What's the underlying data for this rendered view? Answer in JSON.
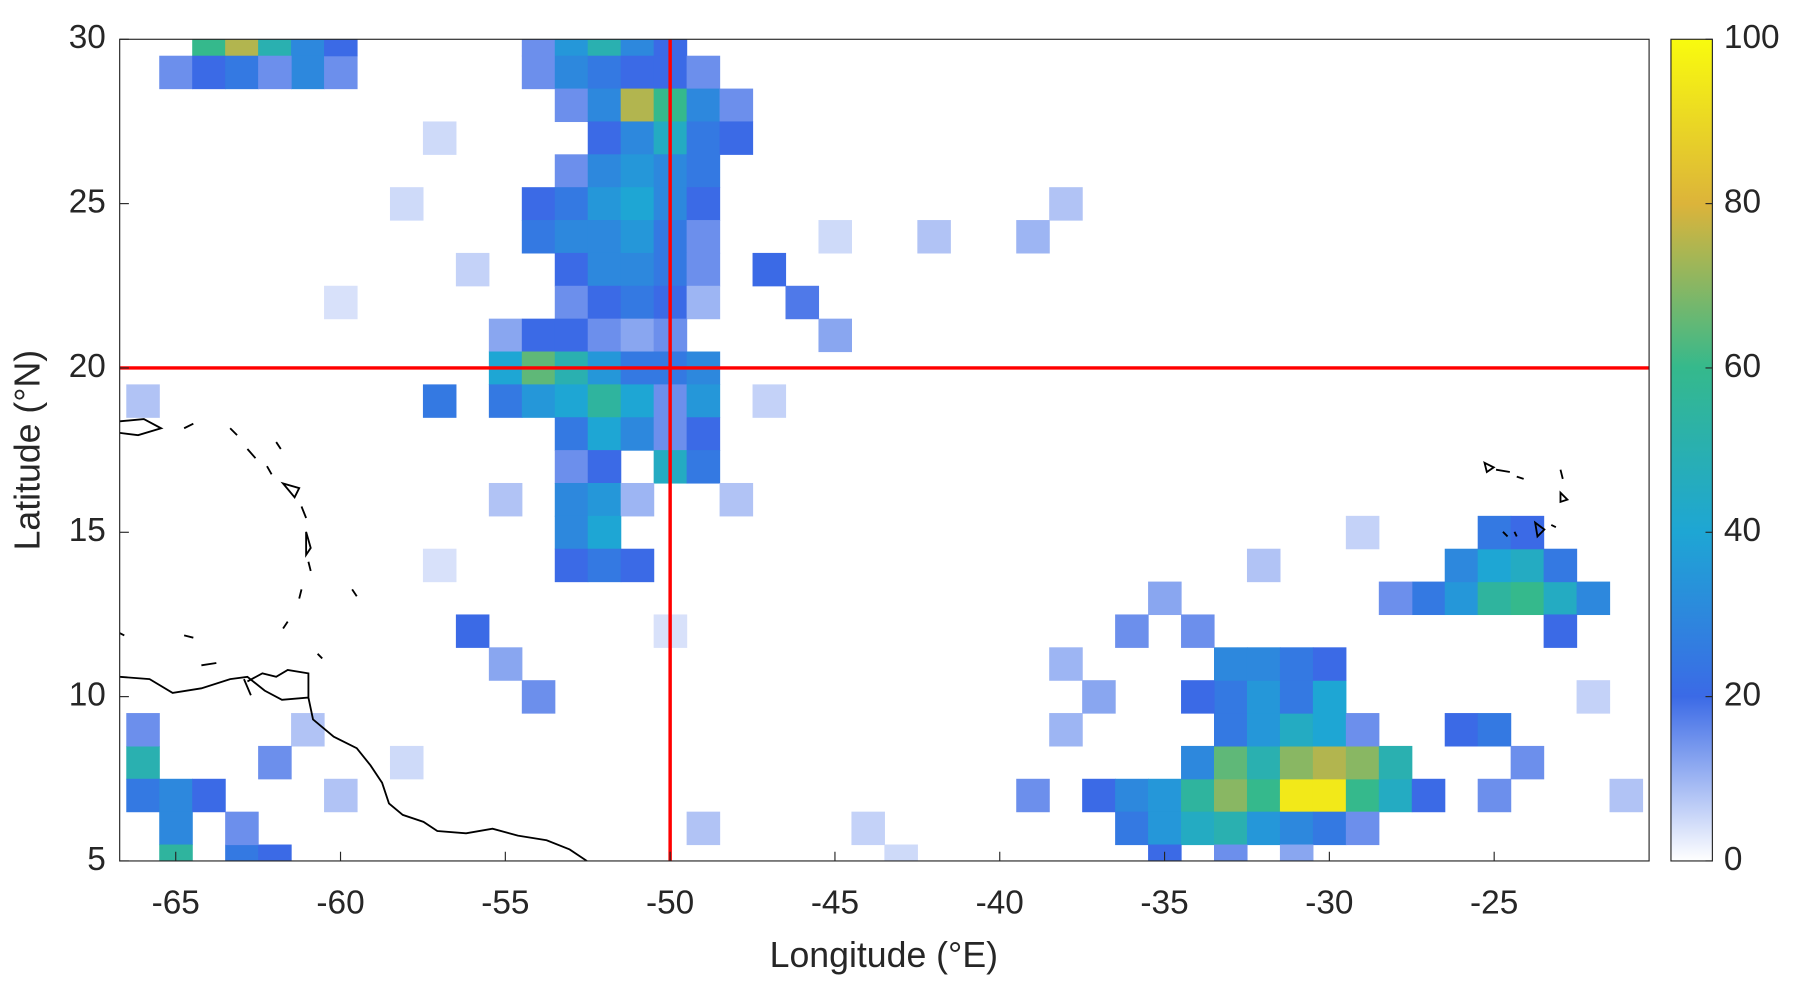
{
  "chart_data": {
    "type": "heatmap",
    "xlabel": "Longitude (°E)",
    "ylabel": "Latitude (°N)",
    "xlim": [
      -66.7,
      -20.3
    ],
    "ylim": [
      5,
      30
    ],
    "xticks": [
      -65,
      -60,
      -55,
      -50,
      -45,
      -40,
      -35,
      -30,
      -25
    ],
    "yticks": [
      5,
      10,
      15,
      20,
      25,
      30
    ],
    "clim": [
      0,
      100
    ],
    "cticks": [
      0,
      20,
      40,
      60,
      80,
      100
    ],
    "colormap": [
      "#ffffff",
      "#3b6ae6",
      "#1ea6d4",
      "#35b98c",
      "#dcb43a",
      "#f9fb0e"
    ],
    "crosshair": {
      "x": -50,
      "y": 20,
      "color": "#ff0000"
    },
    "x": [
      -65,
      -64,
      -63,
      -62,
      -61,
      -64,
      -63,
      -61,
      -60,
      -62,
      -60,
      -54,
      -53,
      -52,
      -51,
      -50,
      -54,
      -53,
      -52,
      -51,
      -50,
      -49,
      -53,
      -52,
      -51,
      -50,
      -49,
      -48,
      -52,
      -51,
      -50,
      -49,
      -48,
      -53,
      -52,
      -51,
      -50,
      -49,
      -54,
      -53,
      -52,
      -51,
      -50,
      -49,
      -54,
      -53,
      -52,
      -51,
      -50,
      -49,
      -53,
      -52,
      -51,
      -50,
      -49,
      -47,
      -46,
      -45,
      -53,
      -52,
      -51,
      -50,
      -49,
      -55,
      -54,
      -53,
      -52,
      -51,
      -50,
      -55,
      -54,
      -53,
      -52,
      -51,
      -50,
      -49,
      -55,
      -54,
      -53,
      -52,
      -51,
      -50,
      -49,
      -57,
      -53,
      -52,
      -51,
      -50,
      -49,
      -53,
      -52,
      -50,
      -49,
      -53,
      -52,
      -51,
      -53,
      -52,
      -53,
      -52,
      -51,
      -56,
      -55,
      -54,
      -58,
      -45,
      -42,
      -39,
      -38,
      -56,
      -57,
      -60,
      -66,
      -48,
      -47,
      -55,
      -50,
      -57,
      -66,
      -66,
      -65,
      -64,
      -65,
      -65,
      -63,
      -62,
      -61,
      -62,
      -63,
      -66,
      -60,
      -58,
      -37,
      -36,
      -35,
      -38,
      -37,
      -36,
      -35,
      -34,
      -33,
      -32,
      -31,
      -30,
      -29,
      -28,
      -27,
      -36,
      -35,
      -34,
      -33,
      -32,
      -31,
      -30,
      -29,
      -34,
      -33,
      -32,
      -31,
      -30,
      -29,
      -28,
      -33,
      -32,
      -31,
      -30,
      -29,
      -33,
      -32,
      -31,
      -30,
      -34,
      -33,
      -32,
      -31,
      -30,
      -34,
      -35,
      -33,
      -31,
      -26,
      -25,
      -24,
      -25,
      -39,
      -27,
      -26,
      -25,
      -24,
      -23,
      -22,
      -26,
      -25,
      -24,
      -23,
      -25,
      -24,
      -28,
      -23,
      -29,
      -32,
      -38,
      -22,
      -21,
      -44,
      -49,
      -43
    ],
    "y": [
      29,
      30,
      30,
      30,
      30,
      29,
      29,
      29,
      29,
      29,
      30,
      30,
      30,
      30,
      30,
      30,
      29,
      29,
      29,
      29,
      29,
      29,
      28,
      28,
      28,
      28,
      28,
      28,
      27,
      27,
      27,
      27,
      27,
      26,
      26,
      26,
      26,
      26,
      25,
      25,
      25,
      25,
      25,
      25,
      24,
      24,
      24,
      24,
      24,
      24,
      23,
      23,
      23,
      23,
      23,
      23,
      22,
      21,
      22,
      22,
      22,
      22,
      22,
      21,
      21,
      21,
      21,
      21,
      21,
      20,
      20,
      20,
      20,
      20,
      20,
      20,
      19,
      19,
      19,
      19,
      19,
      19,
      19,
      19,
      18,
      18,
      18,
      18,
      18,
      17,
      17,
      17,
      17,
      16,
      16,
      16,
      15,
      15,
      14,
      14,
      14,
      12,
      11,
      10,
      25,
      24,
      24,
      24,
      25,
      23,
      27,
      22,
      19,
      16,
      19,
      16,
      12,
      14,
      8,
      7,
      7,
      7,
      6,
      5,
      5,
      5,
      9,
      8,
      6,
      9,
      7,
      8,
      10,
      12,
      13,
      9,
      7,
      7,
      7,
      7,
      7,
      7,
      7,
      7,
      7,
      7,
      7,
      6,
      6,
      6,
      6,
      6,
      6,
      6,
      6,
      8,
      8,
      8,
      8,
      8,
      8,
      8,
      9,
      9,
      9,
      9,
      9,
      10,
      10,
      10,
      10,
      10,
      11,
      11,
      11,
      11,
      12,
      5,
      5,
      5,
      9,
      9,
      8,
      7,
      7,
      13,
      13,
      13,
      13,
      13,
      13,
      14,
      14,
      14,
      14,
      15,
      15,
      13,
      12,
      15,
      14,
      11,
      10,
      7,
      6,
      6,
      5
    ],
    "values": [
      15,
      60,
      75,
      50,
      30,
      20,
      25,
      30,
      15,
      15,
      20,
      15,
      35,
      50,
      30,
      20,
      15,
      30,
      25,
      20,
      20,
      15,
      15,
      30,
      75,
      60,
      30,
      15,
      20,
      30,
      45,
      25,
      20,
      15,
      30,
      35,
      30,
      25,
      20,
      25,
      35,
      40,
      30,
      20,
      25,
      30,
      30,
      35,
      25,
      15,
      20,
      30,
      30,
      25,
      15,
      20,
      18,
      12,
      15,
      20,
      25,
      20,
      10,
      12,
      20,
      20,
      15,
      12,
      15,
      40,
      65,
      50,
      35,
      25,
      25,
      30,
      25,
      35,
      40,
      55,
      40,
      15,
      35,
      25,
      25,
      40,
      30,
      15,
      20,
      15,
      20,
      45,
      25,
      30,
      35,
      10,
      30,
      40,
      20,
      25,
      20,
      20,
      12,
      15,
      5,
      5,
      8,
      10,
      8,
      6,
      5,
      4,
      8,
      8,
      6,
      8,
      4,
      4,
      50,
      25,
      30,
      20,
      30,
      55,
      25,
      20,
      8,
      15,
      15,
      15,
      8,
      5,
      12,
      15,
      12,
      10,
      20,
      30,
      35,
      55,
      70,
      60,
      95,
      95,
      60,
      45,
      20,
      25,
      35,
      45,
      50,
      35,
      30,
      25,
      15,
      30,
      65,
      50,
      70,
      75,
      70,
      50,
      25,
      35,
      45,
      40,
      15,
      25,
      35,
      25,
      40,
      20,
      30,
      30,
      25,
      20,
      15,
      20,
      15,
      12,
      20,
      25,
      15,
      15,
      15,
      25,
      35,
      55,
      60,
      45,
      30,
      30,
      40,
      45,
      25,
      25,
      20,
      15,
      20,
      6,
      8,
      10,
      6,
      8,
      6,
      8,
      5
    ]
  }
}
